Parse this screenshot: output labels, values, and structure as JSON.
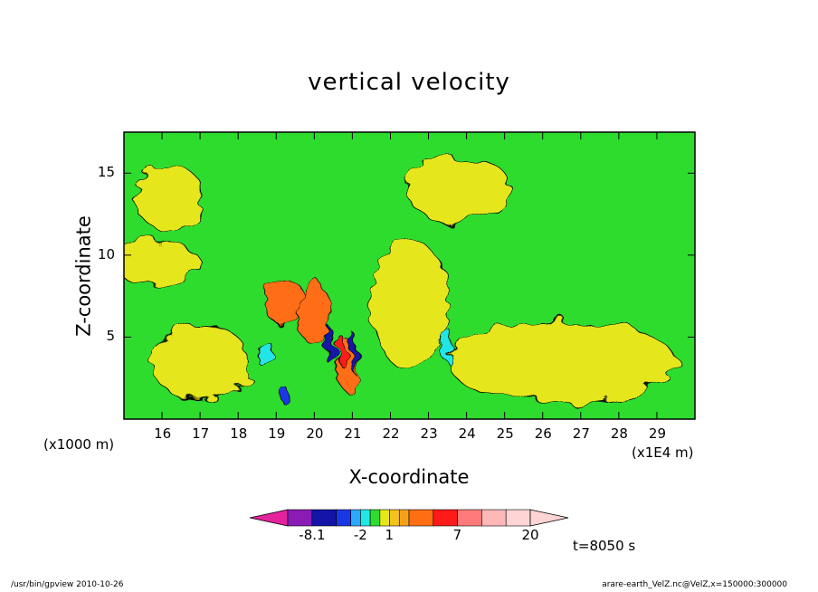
{
  "chart_data": {
    "type": "heatmap",
    "title": "vertical velocity",
    "xlabel": "X-coordinate",
    "ylabel": "Z-coordinate",
    "x_unit_label": "(x1E4 m)",
    "y_unit_label": "(x1000 m)",
    "xlim": [
      15,
      30
    ],
    "ylim": [
      0,
      17.5
    ],
    "x_ticks": [
      "16",
      "17",
      "18",
      "19",
      "20",
      "21",
      "22",
      "23",
      "24",
      "25",
      "26",
      "27",
      "28",
      "29"
    ],
    "y_ticks": [
      "5",
      "10",
      "15"
    ],
    "colorbar": {
      "tick_labels": [
        "-8.1",
        "-2",
        "1",
        "7",
        "20"
      ],
      "levels": [
        -8.1,
        -6,
        -4,
        -2,
        -1,
        0,
        1,
        2,
        3,
        5,
        7,
        10,
        14,
        20
      ],
      "colors": [
        "#e4229b",
        "#8a1bb5",
        "#1414a8",
        "#1a37e6",
        "#2aa9ff",
        "#22e6e6",
        "#2edc2e",
        "#e6e61a",
        "#f2c21e",
        "#f5a21a",
        "#ff6e12",
        "#ff1a1a",
        "#ff7a7a",
        "#ffb8b8",
        "#ffd4d4"
      ]
    },
    "background_class": "green",
    "features": [
      {
        "name": "positive-band-upper-left",
        "x": 16.2,
        "z": 13.5,
        "rx": 0.9,
        "rz": 2.0,
        "class": "yellow"
      },
      {
        "name": "positive-band-mid-left",
        "x": 15.8,
        "z": 9.5,
        "rx": 1.2,
        "rz": 1.4,
        "class": "yellow"
      },
      {
        "name": "positive-band-low-left",
        "x": 17.0,
        "z": 3.5,
        "rx": 1.3,
        "rz": 2.3,
        "class": "yellow"
      },
      {
        "name": "positive-band-right-upper",
        "x": 23.8,
        "z": 14.0,
        "rx": 1.4,
        "rz": 2.0,
        "class": "yellow"
      },
      {
        "name": "positive-band-right-low",
        "x": 26.5,
        "z": 3.5,
        "rx": 3.0,
        "rz": 2.5,
        "class": "yellow"
      },
      {
        "name": "positive-band-center",
        "x": 22.5,
        "z": 7.0,
        "rx": 1.0,
        "rz": 4.0,
        "class": "yellow"
      },
      {
        "name": "updraft-core-main",
        "x": 19.2,
        "z": 7.2,
        "rx": 0.5,
        "rz": 1.5,
        "class": "orange"
      },
      {
        "name": "updraft-core-second",
        "x": 20.0,
        "z": 6.5,
        "rx": 0.4,
        "rz": 2.0,
        "class": "orange"
      },
      {
        "name": "updraft-core-third",
        "x": 20.85,
        "z": 3.3,
        "rx": 0.3,
        "rz": 1.5,
        "class": "orange"
      },
      {
        "name": "updraft-max",
        "x": 20.7,
        "z": 4.2,
        "rx": 0.12,
        "rz": 0.9,
        "class": "red"
      },
      {
        "name": "downdraft-main",
        "x": 20.4,
        "z": 4.5,
        "rx": 0.12,
        "rz": 1.1,
        "class": "darkblue"
      },
      {
        "name": "downdraft-right",
        "x": 21.05,
        "z": 4.0,
        "rx": 0.08,
        "rz": 1.2,
        "class": "darkblue"
      },
      {
        "name": "downdraft-low",
        "x": 19.2,
        "z": 1.5,
        "rx": 0.12,
        "rz": 0.5,
        "class": "blue"
      },
      {
        "name": "downdraft-cyan-left",
        "x": 18.7,
        "z": 4.0,
        "rx": 0.15,
        "rz": 0.9,
        "class": "cyan"
      },
      {
        "name": "downdraft-cyan-right",
        "x": 23.5,
        "z": 4.5,
        "rx": 0.15,
        "rz": 1.0,
        "class": "cyan"
      }
    ]
  },
  "annotations": {
    "time": "t=8050 s",
    "footer_left": "/usr/bin/gpview   2010-10-26",
    "footer_right": "arare-earth_VelZ.nc@VelZ,x=150000:300000"
  }
}
